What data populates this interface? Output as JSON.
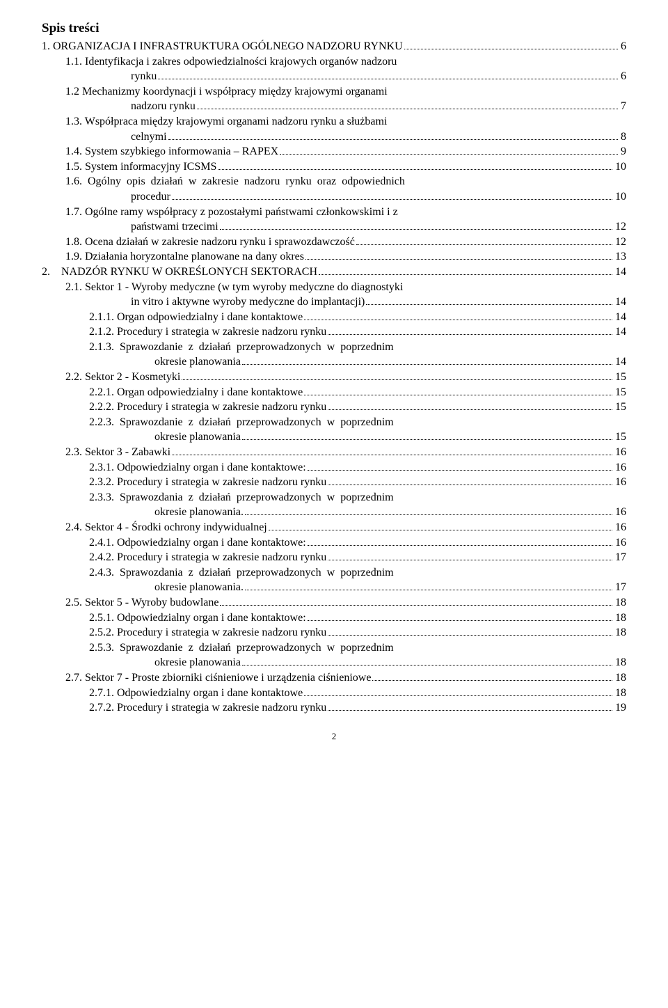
{
  "title": "Spis treści",
  "page_number": "2",
  "entries": [
    {
      "indent": 0,
      "text": "1. ORGANIZACJA I INFRASTRUKTURA OGÓLNEGO NADZORU RYNKU",
      "page": "6"
    },
    {
      "indent": 1,
      "text": "1.1. Identyfikacja i zakres odpowiedzialności krajowych organów nadzoru",
      "wrap": true
    },
    {
      "indent": 1,
      "hang": 1,
      "text": "rynku",
      "page": "6"
    },
    {
      "indent": 1,
      "text": "1.2 Mechanizmy koordynacji i współpracy między krajowymi organami",
      "wrap": true
    },
    {
      "indent": 1,
      "hang": 1,
      "text": "nadzoru rynku",
      "page": "7"
    },
    {
      "indent": 1,
      "text": "1.3. Współpraca między krajowymi organami nadzoru rynku a służbami",
      "wrap": true
    },
    {
      "indent": 1,
      "hang": 1,
      "text": "celnymi",
      "page": "8"
    },
    {
      "indent": 1,
      "text": "1.4. System szybkiego informowania – RAPEX",
      "page": "9"
    },
    {
      "indent": 1,
      "text": "1.5. System informacyjny ICSMS",
      "page": "10"
    },
    {
      "indent": 1,
      "text": "1.6.  Ogólny  opis  działań  w  zakresie  nadzoru  rynku  oraz  odpowiednich",
      "wrap": true
    },
    {
      "indent": 1,
      "hang": 1,
      "text": "procedur",
      "page": "10"
    },
    {
      "indent": 1,
      "text": "1.7. Ogólne ramy współpracy z pozostałymi państwami członkowskimi i z",
      "wrap": true
    },
    {
      "indent": 1,
      "hang": 1,
      "text": "państwami trzecimi",
      "page": "12"
    },
    {
      "indent": 1,
      "text": "1.8. Ocena działań w zakresie nadzoru rynku i sprawozdawczość",
      "page": "12"
    },
    {
      "indent": 1,
      "text": "1.9. Działania horyzontalne planowane na dany okres",
      "page": "13"
    },
    {
      "indent": 0,
      "text": "2.    NADZÓR RYNKU W OKREŚLONYCH SEKTORACH",
      "page": "14"
    },
    {
      "indent": 1,
      "text": "2.1. Sektor 1 - Wyroby medyczne (w tym wyroby medyczne do diagnostyki",
      "wrap": true
    },
    {
      "indent": 1,
      "hang": 1,
      "text": "in vitro i aktywne wyroby medyczne do implantacji)",
      "page": "14"
    },
    {
      "indent": 2,
      "text": "2.1.1. Organ odpowiedzialny i dane kontaktowe",
      "page": "14"
    },
    {
      "indent": 2,
      "text": "2.1.2. Procedury i strategia w zakresie nadzoru rynku",
      "page": "14"
    },
    {
      "indent": 2,
      "text": "2.1.3.  Sprawozdanie  z  działań  przeprowadzonych  w  poprzednim",
      "wrap": true
    },
    {
      "indent": 2,
      "hang": 2,
      "text": "okresie planowania",
      "page": "14"
    },
    {
      "indent": 1,
      "text": "2.2. Sektor 2 - Kosmetyki",
      "page": "15"
    },
    {
      "indent": 2,
      "text": "2.2.1. Organ odpowiedzialny i dane kontaktowe",
      "page": "15"
    },
    {
      "indent": 2,
      "text": "2.2.2. Procedury i strategia w zakresie nadzoru rynku",
      "page": "15"
    },
    {
      "indent": 2,
      "text": "2.2.3.  Sprawozdanie  z  działań  przeprowadzonych  w  poprzednim",
      "wrap": true
    },
    {
      "indent": 2,
      "hang": 2,
      "text": "okresie planowania",
      "page": "15"
    },
    {
      "indent": 1,
      "text": "2.3. Sektor 3 - Zabawki",
      "page": "16"
    },
    {
      "indent": 2,
      "text": "2.3.1. Odpowiedzialny organ i dane kontaktowe:",
      "page": "16"
    },
    {
      "indent": 2,
      "text": "2.3.2. Procedury i strategia w zakresie nadzoru rynku",
      "page": "16"
    },
    {
      "indent": 2,
      "text": "2.3.3.  Sprawozdania  z  działań  przeprowadzonych  w  poprzednim",
      "wrap": true
    },
    {
      "indent": 2,
      "hang": 2,
      "text": "okresie planowania.",
      "page": "16"
    },
    {
      "indent": 1,
      "text": "2.4. Sektor 4 - Środki ochrony indywidualnej",
      "page": "16"
    },
    {
      "indent": 2,
      "text": "2.4.1. Odpowiedzialny organ i dane kontaktowe:",
      "page": "16"
    },
    {
      "indent": 2,
      "text": "2.4.2. Procedury i strategia w zakresie nadzoru rynku",
      "page": "17"
    },
    {
      "indent": 2,
      "text": "2.4.3.  Sprawozdania  z  działań  przeprowadzonych  w  poprzednim",
      "wrap": true
    },
    {
      "indent": 2,
      "hang": 2,
      "text": "okresie planowania.",
      "page": "17"
    },
    {
      "indent": 1,
      "text": "2.5. Sektor 5 - Wyroby budowlane",
      "page": "18"
    },
    {
      "indent": 2,
      "text": "2.5.1. Odpowiedzialny organ i dane kontaktowe:",
      "page": "18"
    },
    {
      "indent": 2,
      "text": "2.5.2. Procedury i strategia w zakresie nadzoru rynku",
      "page": "18"
    },
    {
      "indent": 2,
      "text": "2.5.3.  Sprawozdanie  z  działań  przeprowadzonych  w  poprzednim",
      "wrap": true
    },
    {
      "indent": 2,
      "hang": 2,
      "text": "okresie planowania",
      "page": "18"
    },
    {
      "indent": 1,
      "text": "2.7. Sektor 7 - Proste zbiorniki ciśnieniowe i urządzenia ciśnieniowe",
      "page": "18"
    },
    {
      "indent": 2,
      "text": "2.7.1. Odpowiedzialny organ i dane kontaktowe",
      "page": "18"
    },
    {
      "indent": 2,
      "text": "2.7.2. Procedury i strategia w zakresie nadzoru rynku",
      "page": "19"
    }
  ]
}
